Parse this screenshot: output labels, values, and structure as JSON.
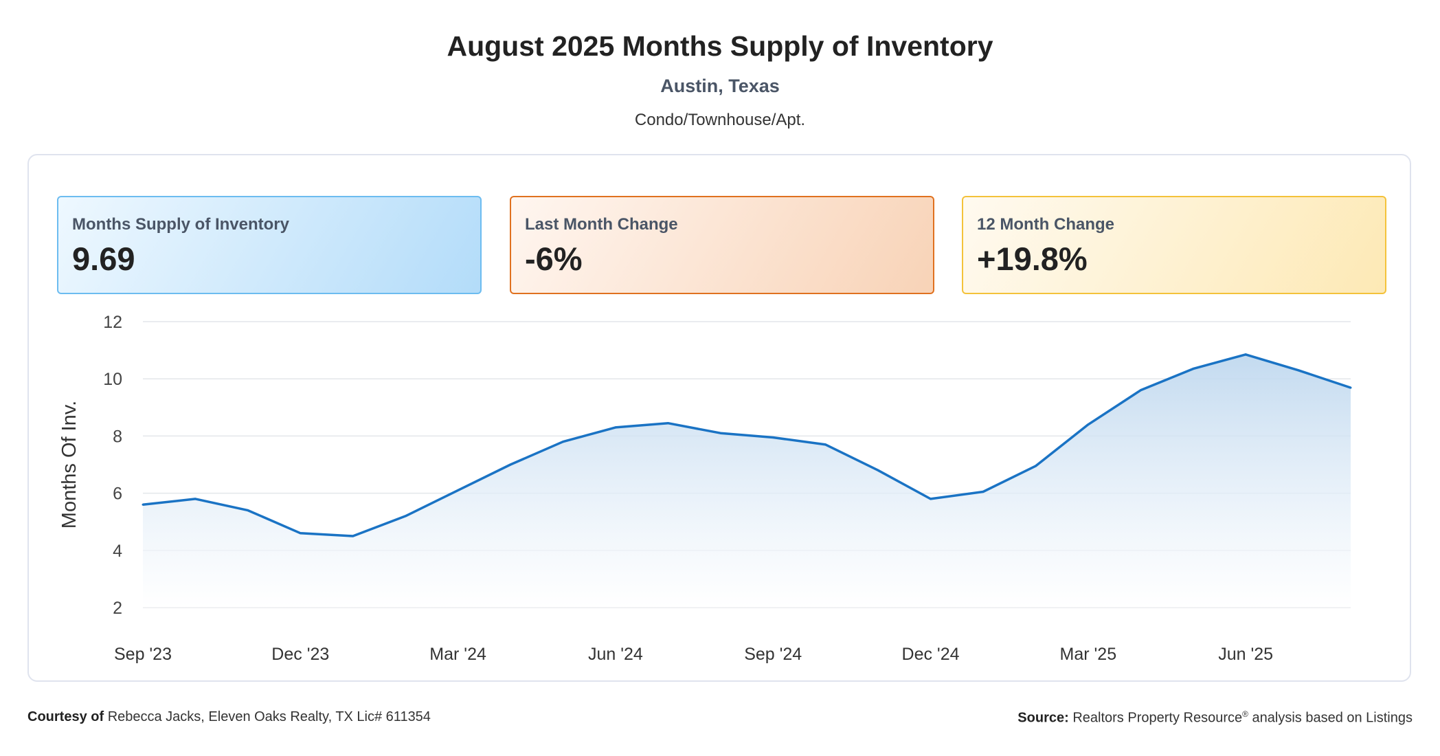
{
  "header": {
    "title": "August 2025 Months Supply of Inventory",
    "location": "Austin, Texas",
    "property_type": "Condo/Townhouse/Apt."
  },
  "cards": [
    {
      "label": "Months Supply of Inventory",
      "value": "9.69",
      "color": "#b3dcf9"
    },
    {
      "label": "Last Month Change",
      "value": "-6%",
      "color": "#f8d3b7"
    },
    {
      "label": "12 Month Change",
      "value": "+19.8%",
      "color": "#fde9b5"
    }
  ],
  "chart_data": {
    "type": "area",
    "ylabel": "Months Of Inv.",
    "xlabel": "",
    "ylim": [
      2,
      12
    ],
    "yticks": [
      2,
      4,
      6,
      8,
      10,
      12
    ],
    "grid": true,
    "line_color": "#1a73c4",
    "x": [
      "Sep '23",
      "Oct '23",
      "Nov '23",
      "Dec '23",
      "Jan '24",
      "Feb '24",
      "Mar '24",
      "Apr '24",
      "May '24",
      "Jun '24",
      "Jul '24",
      "Aug '24",
      "Sep '24",
      "Oct '24",
      "Nov '24",
      "Dec '24",
      "Jan '25",
      "Feb '25",
      "Mar '25",
      "Apr '25",
      "May '25",
      "Jun '25",
      "Jul '25",
      "Aug '25"
    ],
    "xtick_labels": [
      "Sep '23",
      "Dec '23",
      "Mar '24",
      "Jun '24",
      "Sep '24",
      "Dec '24",
      "Mar '25",
      "Jun '25"
    ],
    "series": [
      {
        "values": [
          5.6,
          5.8,
          5.4,
          4.6,
          4.5,
          5.2,
          6.1,
          7.0,
          7.8,
          8.3,
          8.45,
          8.1,
          7.95,
          7.7,
          6.8,
          5.8,
          6.05,
          6.95,
          8.4,
          9.6,
          10.35,
          10.85,
          10.3,
          9.69
        ]
      }
    ]
  },
  "footer": {
    "courtesy_label": "Courtesy of",
    "courtesy_text": "Rebecca Jacks, Eleven Oaks Realty, TX Lic# 611354",
    "source_label": "Source:",
    "source_text_1": "Realtors Property Resource",
    "source_mark": "®",
    "source_text_2": "analysis based on Listings"
  }
}
